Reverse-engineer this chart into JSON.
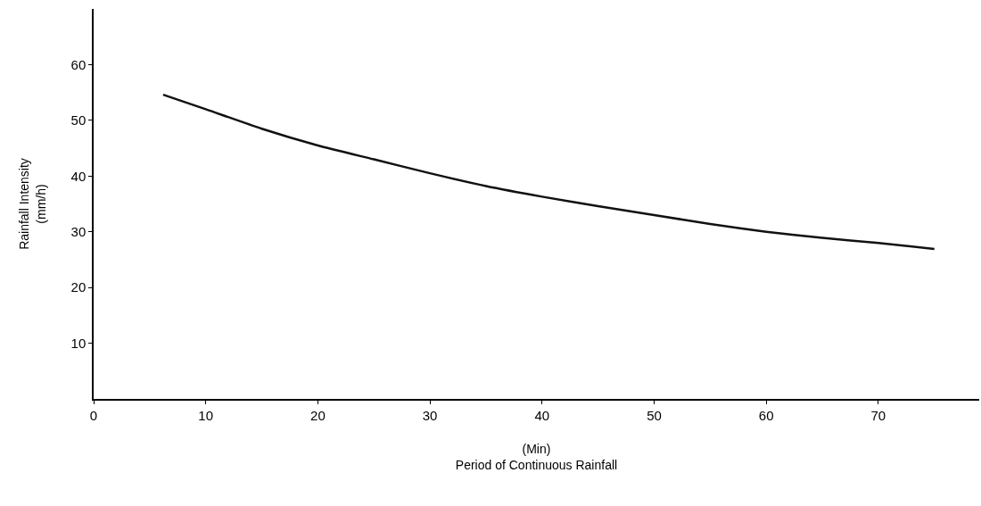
{
  "chart_data": {
    "type": "line",
    "xlabel": "(Min)\nPeriod of Continuous Rainfall",
    "ylabel": "Rainfall Intensity\n(mm/h)",
    "x": [
      6.2,
      10,
      15,
      20,
      25,
      30,
      35,
      40,
      45,
      50,
      55,
      60,
      65,
      70,
      75
    ],
    "series": [
      {
        "color": "#111111",
        "values": [
          54.6,
          52,
          48.5,
          45.5,
          43,
          40.5,
          38.2,
          36.3,
          34.6,
          33,
          31.4,
          30,
          28.9,
          28,
          26.9
        ]
      }
    ],
    "xlim": [
      0,
      79
    ],
    "ylim": [
      0,
      70
    ],
    "xticks": [
      0,
      10,
      20,
      30,
      40,
      50,
      60,
      70
    ],
    "yticks": [
      10,
      20,
      30,
      40,
      50,
      60
    ],
    "marker": "none",
    "line_style": "solid"
  }
}
